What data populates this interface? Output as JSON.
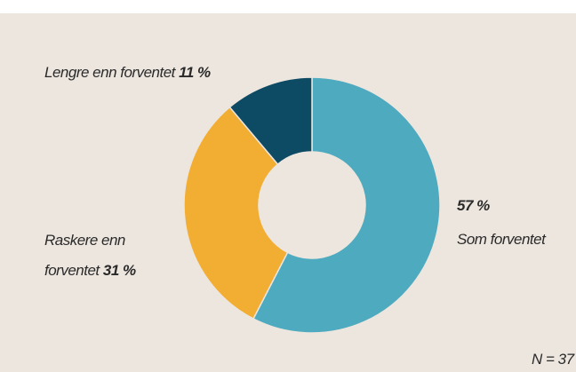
{
  "chart_data": {
    "type": "donut",
    "categories": [
      "Som forventet",
      "Raskere enn forventet",
      "Lengre enn forventet"
    ],
    "values": [
      57,
      31,
      11
    ],
    "value_labels": [
      "57 %",
      "31 %",
      "11 %"
    ],
    "colors": [
      "#4eaabf",
      "#f2ad33",
      "#0d4a63"
    ],
    "annotation": "N = 37"
  }
}
